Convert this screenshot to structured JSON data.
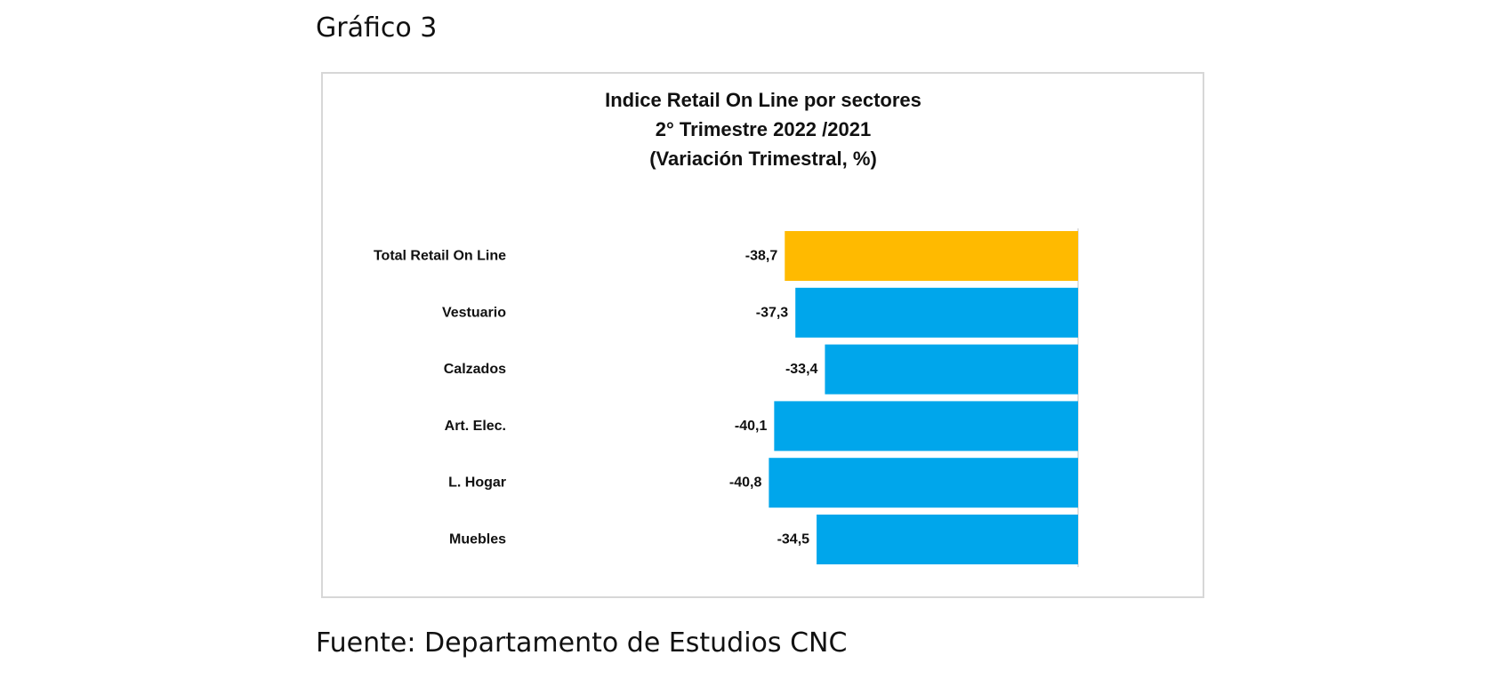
{
  "caption": "Gráfico 3",
  "source": "Fuente: Departamento de Estudios CNC",
  "chart_data": {
    "type": "bar",
    "orientation": "horizontal",
    "title_lines": [
      "Indice Retail On Line por sectores",
      "2° Trimestre 2022 /2021",
      "(Variación Trimestral, %)"
    ],
    "categories": [
      "Total Retail On Line",
      "Vestuario",
      "Calzados",
      "Art. Elec.",
      "L. Hogar",
      "Muebles"
    ],
    "values": [
      -38.7,
      -37.3,
      -33.4,
      -40.1,
      -40.8,
      -34.5
    ],
    "value_labels": [
      "-38,7",
      "-37,3",
      "-33,4",
      "-40,1",
      "-40,8",
      "-34,5"
    ],
    "colors": [
      "#FFBA00",
      "#00A6EB",
      "#00A6EB",
      "#00A6EB",
      "#00A6EB",
      "#00A6EB"
    ],
    "xlim": [
      -50,
      0
    ],
    "grid": false,
    "legend": "none"
  }
}
